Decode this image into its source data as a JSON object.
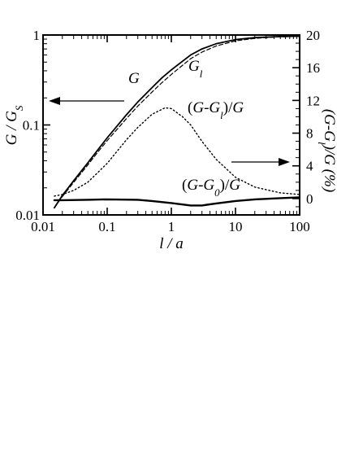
{
  "chart_data": {
    "type": "line",
    "title": "",
    "xlabel": "l / a",
    "ylabel_left": "G / G_S",
    "ylabel_right": "(G-G_l)/G (%)",
    "xscale": "log",
    "yscale_left": "log",
    "xlim": [
      0.01,
      100
    ],
    "ylim_left": [
      0.01,
      1
    ],
    "ylim_right": [
      -2,
      20
    ],
    "x_ticks": [
      "0.01",
      "0.1",
      "1",
      "10",
      "100"
    ],
    "y_left_ticks": [
      "0.01",
      "0.1",
      "1"
    ],
    "y_right_ticks": [
      "0",
      "4",
      "8",
      "12",
      "16",
      "20"
    ],
    "grid": false,
    "series": [
      {
        "name": "G",
        "axis": "left",
        "style": "solid",
        "x": [
          0.015,
          0.02,
          0.03,
          0.05,
          0.07,
          0.1,
          0.2,
          0.3,
          0.5,
          0.7,
          1,
          2,
          3,
          5,
          10,
          20,
          50,
          100
        ],
        "y": [
          0.012,
          0.0165,
          0.024,
          0.038,
          0.052,
          0.072,
          0.13,
          0.18,
          0.26,
          0.33,
          0.41,
          0.6,
          0.7,
          0.8,
          0.89,
          0.935,
          0.962,
          0.97
        ]
      },
      {
        "name": "G_l",
        "axis": "left",
        "style": "dashed",
        "x": [
          0.015,
          0.02,
          0.03,
          0.05,
          0.07,
          0.1,
          0.2,
          0.3,
          0.5,
          0.7,
          1,
          2,
          3,
          5,
          10,
          20,
          50,
          100
        ],
        "y": [
          0.012,
          0.016,
          0.023,
          0.036,
          0.049,
          0.067,
          0.118,
          0.162,
          0.232,
          0.292,
          0.365,
          0.545,
          0.645,
          0.755,
          0.86,
          0.918,
          0.955,
          0.965
        ]
      },
      {
        "name": "(G-G_l)/G",
        "axis": "right",
        "style": "dotted",
        "x": [
          0.015,
          0.02,
          0.03,
          0.05,
          0.1,
          0.2,
          0.3,
          0.5,
          0.8,
          1,
          1.5,
          2,
          3,
          5,
          10,
          20,
          50,
          100
        ],
        "y": [
          0.3,
          0.5,
          1.0,
          2.0,
          4.3,
          7.2,
          8.7,
          10.3,
          11.1,
          11.0,
          10.0,
          9.0,
          7.0,
          4.8,
          2.6,
          1.4,
          0.7,
          0.5
        ]
      },
      {
        "name": "(G-G_0)/G",
        "axis": "right",
        "style": "solid",
        "x": [
          0.015,
          0.02,
          0.05,
          0.1,
          0.3,
          0.5,
          1,
          2,
          3,
          5,
          10,
          20,
          50,
          100
        ],
        "y": [
          -0.2,
          -0.2,
          -0.15,
          -0.1,
          -0.15,
          -0.3,
          -0.55,
          -0.85,
          -0.85,
          -0.6,
          -0.3,
          -0.1,
          0.05,
          0.15
        ]
      }
    ],
    "annotations": [
      {
        "text": "G"
      },
      {
        "text": "G_l"
      },
      {
        "text": "(G-G_l)/G"
      },
      {
        "text": "(G-G_0)/G"
      }
    ],
    "arrows": [
      "left",
      "right"
    ]
  }
}
